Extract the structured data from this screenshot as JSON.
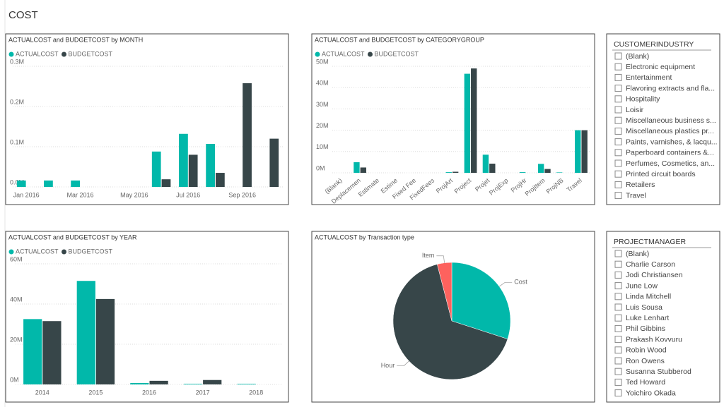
{
  "page_title": "COST",
  "chart_data": [
    {
      "type": "bar",
      "title": "ACTUALCOST and BUDGETCOST by MONTH",
      "categories": [
        "Jan 2016",
        null,
        "Mar 2016",
        null,
        "May 2016",
        null,
        "Jul 2016",
        null,
        "Sep 2016",
        null
      ],
      "series": [
        {
          "name": "ACTUALCOST",
          "color": "#01b8aa",
          "values": [
            0.016,
            0.016,
            0.016,
            null,
            null,
            0.088,
            0.132,
            0.107,
            null,
            null
          ]
        },
        {
          "name": "BUDGETCOST",
          "color": "#374649",
          "values": [
            null,
            null,
            null,
            null,
            null,
            0.019,
            0.08,
            0.035,
            0.258,
            0.12
          ]
        }
      ],
      "ylim": [
        0,
        0.3
      ],
      "yticks": [
        {
          "value": 0,
          "label": "0.0M"
        },
        {
          "value": 0.1,
          "label": "0.1M"
        },
        {
          "value": 0.2,
          "label": "0.2M"
        },
        {
          "value": 0.3,
          "label": "0.3M"
        }
      ],
      "grid": true
    },
    {
      "type": "bar",
      "title": "ACTUALCOST and BUDGETCOST by CATEGORYGROUP",
      "categories": [
        "(Blank)",
        "Deplacemen",
        "Estimate",
        "Estime",
        "Fixed Fee",
        "FixedFees",
        "ProjArt",
        "Project",
        "Projet",
        "ProjExp",
        "ProjHr",
        "ProjItem",
        "ProjNB",
        "Travel"
      ],
      "series": [
        {
          "name": "ACTUALCOST",
          "color": "#01b8aa",
          "values": [
            0,
            5,
            0,
            0,
            0,
            0,
            0.3,
            46.5,
            8.5,
            0,
            0.3,
            4.2,
            0.2,
            20
          ]
        },
        {
          "name": "BUDGETCOST",
          "color": "#374649",
          "values": [
            0,
            2.5,
            0,
            0,
            0,
            0,
            0.5,
            49,
            4.3,
            0,
            0,
            1.8,
            0,
            20
          ]
        }
      ],
      "ylim": [
        0,
        50
      ],
      "yticks": [
        {
          "value": 0,
          "label": "0M"
        },
        {
          "value": 10,
          "label": "10M"
        },
        {
          "value": 20,
          "label": "20M"
        },
        {
          "value": 30,
          "label": "30M"
        },
        {
          "value": 40,
          "label": "40M"
        },
        {
          "value": 50,
          "label": "50M"
        }
      ],
      "grid": true,
      "rotate_labels": true
    },
    {
      "type": "bar",
      "title": "ACTUALCOST and BUDGETCOST by YEAR",
      "categories": [
        "2014",
        "2015",
        "2016",
        "2017",
        "2018"
      ],
      "series": [
        {
          "name": "ACTUALCOST",
          "color": "#01b8aa",
          "values": [
            32.5,
            51.5,
            0.7,
            0.3,
            0.3
          ]
        },
        {
          "name": "BUDGETCOST",
          "color": "#374649",
          "values": [
            31.5,
            42.5,
            1.8,
            2.2,
            0
          ]
        }
      ],
      "ylim": [
        0,
        60
      ],
      "yticks": [
        {
          "value": 0,
          "label": "0M"
        },
        {
          "value": 20,
          "label": "20M"
        },
        {
          "value": 40,
          "label": "40M"
        },
        {
          "value": 60,
          "label": "60M"
        }
      ],
      "grid": true
    },
    {
      "type": "pie",
      "title": "ACTUALCOST by Transaction type",
      "categories": [
        "Cost",
        "Hour",
        "Item"
      ],
      "values": [
        30,
        66,
        4
      ],
      "colors": [
        "#01b8aa",
        "#374649",
        "#fd625e"
      ]
    }
  ],
  "slicers": [
    {
      "title": "CUSTOMERINDUSTRY",
      "items": [
        "(Blank)",
        "Electronic equipment",
        "Entertainment",
        "Flavoring extracts and fla...",
        "Hospitality",
        "Loisir",
        "Miscellaneous business s...",
        "Miscellaneous plastics pr...",
        "Paints, varnishes, & lacqu...",
        "Paperboard containers &...",
        "Perfumes, Cosmetics, an...",
        "Printed circuit boards",
        "Retailers",
        "Travel"
      ]
    },
    {
      "title": "PROJECTMANAGER",
      "items": [
        "(Blank)",
        "Charlie Carson",
        "Jodi Christiansen",
        "June Low",
        "Linda Mitchell",
        "Luis Sousa",
        "Luke Lenhart",
        "Phil Gibbins",
        "Prakash Kovvuru",
        "Robin Wood",
        "Ron Owens",
        "Susanna Stubberod",
        "Ted Howard",
        "Yoichiro Okada"
      ]
    }
  ]
}
